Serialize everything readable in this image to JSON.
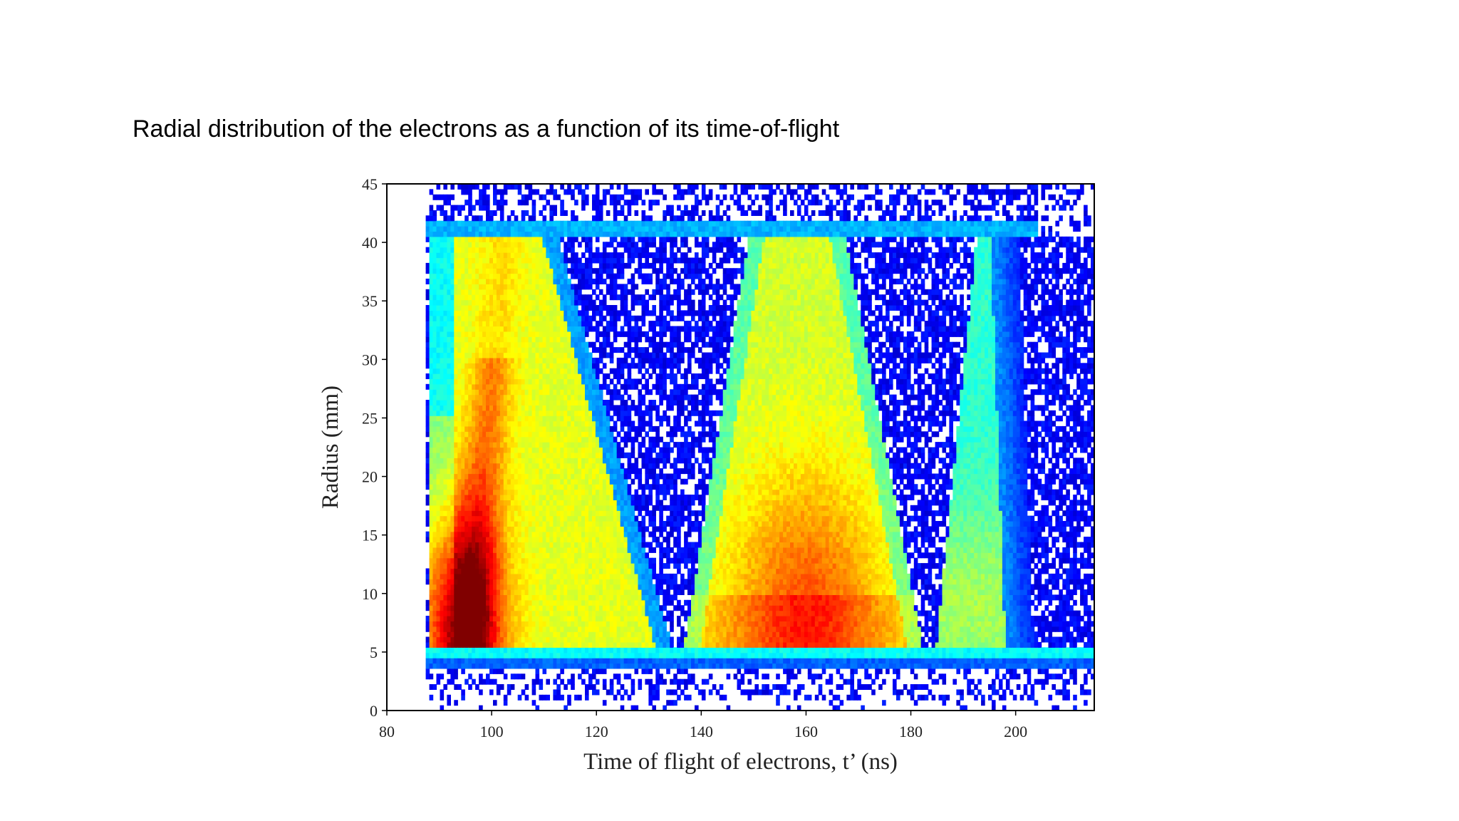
{
  "slide": {
    "caption": " Radial distribution of the electrons as a function of its time-of-flight"
  },
  "chart_data": {
    "type": "heatmap",
    "title": "",
    "xlabel": "Time of flight of electrons, t’ (ns)",
    "ylabel": "Radius (mm)",
    "xlim": [
      80,
      215
    ],
    "ylim": [
      0,
      45
    ],
    "x_ticks": [
      80,
      100,
      120,
      140,
      160,
      180,
      200
    ],
    "y_ticks": [
      0,
      5,
      10,
      15,
      20,
      25,
      30,
      35,
      40,
      45
    ],
    "colormap": "jet",
    "legend": "none",
    "grid": false,
    "regions": [
      {
        "x_start": 88,
        "x_end": 135,
        "peak_intensity": 1.0,
        "peak_near": [
          94,
          7
        ]
      },
      {
        "x_start": 135,
        "x_end": 183,
        "peak_intensity": 0.82,
        "peak_near": [
          160,
          7
        ]
      },
      {
        "x_start": 183,
        "x_end": 215,
        "peak_intensity": 0.55,
        "peak_near": [
          186,
          8
        ]
      }
    ],
    "radius_band": [
      5.5,
      40.5
    ],
    "low_density_gaps_ns": [
      135,
      183
    ]
  }
}
